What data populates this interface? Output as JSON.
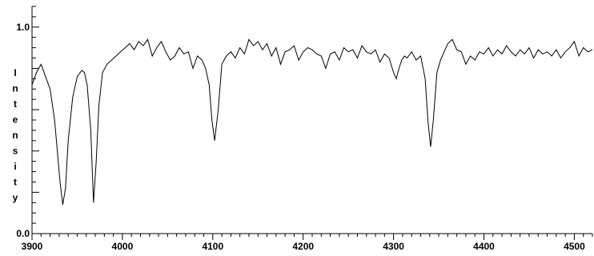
{
  "chart_data": {
    "type": "line",
    "title": "",
    "xlabel": "",
    "ylabel": "Intensity",
    "xlim": [
      3900,
      4520
    ],
    "ylim": [
      0.0,
      1.1
    ],
    "x_ticks": [
      3900,
      4000,
      4100,
      4200,
      4300,
      4400,
      4500
    ],
    "x_tick_labels": [
      "3900",
      "4000",
      "4100",
      "4200",
      "4300",
      "4400",
      "4500"
    ],
    "y_tick_labels": [
      {
        "value": 0.0,
        "label": "0.0"
      },
      {
        "value": 1.0,
        "label": "1.0"
      }
    ],
    "grid": false,
    "legend": "none",
    "series": [
      {
        "color": "#000000",
        "x": [
          3900,
          3905,
          3910,
          3915,
          3920,
          3925,
          3928,
          3931,
          3934,
          3937,
          3940,
          3945,
          3950,
          3955,
          3958,
          3961,
          3965,
          3968,
          3971,
          3974,
          3978,
          3983,
          3988,
          3993,
          3998,
          4003,
          4008,
          4013,
          4018,
          4023,
          4028,
          4033,
          4038,
          4043,
          4048,
          4053,
          4058,
          4063,
          4068,
          4073,
          4078,
          4083,
          4088,
          4092,
          4096,
          4099,
          4102,
          4106,
          4110,
          4115,
          4120,
          4125,
          4130,
          4135,
          4140,
          4145,
          4150,
          4155,
          4160,
          4165,
          4170,
          4175,
          4180,
          4185,
          4190,
          4195,
          4200,
          4205,
          4210,
          4215,
          4220,
          4225,
          4230,
          4235,
          4240,
          4245,
          4250,
          4255,
          4260,
          4265,
          4270,
          4275,
          4280,
          4285,
          4290,
          4295,
          4300,
          4303,
          4306,
          4309,
          4312,
          4315,
          4320,
          4325,
          4330,
          4335,
          4338,
          4341,
          4344,
          4348,
          4352,
          4356,
          4360,
          4365,
          4370,
          4375,
          4380,
          4385,
          4390,
          4395,
          4400,
          4405,
          4410,
          4415,
          4420,
          4425,
          4430,
          4435,
          4440,
          4445,
          4450,
          4455,
          4460,
          4465,
          4470,
          4475,
          4480,
          4485,
          4490,
          4495,
          4500,
          4505,
          4510,
          4515,
          4520
        ],
        "y": [
          0.72,
          0.78,
          0.82,
          0.76,
          0.7,
          0.55,
          0.4,
          0.25,
          0.14,
          0.22,
          0.45,
          0.66,
          0.76,
          0.79,
          0.78,
          0.72,
          0.5,
          0.15,
          0.35,
          0.62,
          0.78,
          0.82,
          0.84,
          0.86,
          0.88,
          0.9,
          0.92,
          0.89,
          0.93,
          0.91,
          0.94,
          0.86,
          0.9,
          0.93,
          0.88,
          0.84,
          0.86,
          0.9,
          0.87,
          0.88,
          0.8,
          0.86,
          0.84,
          0.8,
          0.72,
          0.55,
          0.45,
          0.6,
          0.82,
          0.86,
          0.88,
          0.85,
          0.9,
          0.87,
          0.94,
          0.91,
          0.93,
          0.89,
          0.92,
          0.86,
          0.9,
          0.82,
          0.88,
          0.89,
          0.91,
          0.84,
          0.88,
          0.9,
          0.89,
          0.87,
          0.86,
          0.8,
          0.87,
          0.88,
          0.84,
          0.9,
          0.88,
          0.89,
          0.85,
          0.91,
          0.88,
          0.87,
          0.89,
          0.83,
          0.87,
          0.85,
          0.78,
          0.75,
          0.8,
          0.84,
          0.86,
          0.85,
          0.88,
          0.84,
          0.86,
          0.75,
          0.55,
          0.42,
          0.55,
          0.78,
          0.84,
          0.88,
          0.92,
          0.94,
          0.89,
          0.88,
          0.82,
          0.86,
          0.84,
          0.88,
          0.87,
          0.9,
          0.86,
          0.89,
          0.87,
          0.91,
          0.88,
          0.86,
          0.89,
          0.87,
          0.9,
          0.85,
          0.89,
          0.87,
          0.88,
          0.86,
          0.89,
          0.85,
          0.88,
          0.9,
          0.93,
          0.86,
          0.9,
          0.88,
          0.89
        ]
      }
    ]
  }
}
